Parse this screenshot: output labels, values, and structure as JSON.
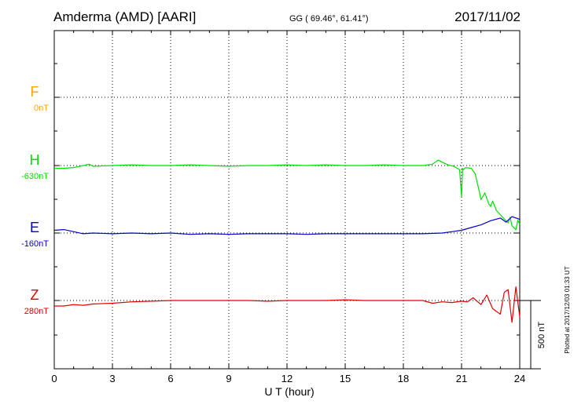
{
  "header": {
    "station": "Amderma (AMD)  [AARI]",
    "coords": "GG ( 69.46°,  61.41°)",
    "date": "2017/11/02"
  },
  "footer": {
    "plotted": "Plotted at 2017/12/03 01:33 UT"
  },
  "chart_data": {
    "type": "line",
    "xlabel": "U T (hour)",
    "xlim": [
      0,
      24
    ],
    "xticks": [
      "0",
      "3",
      "6",
      "9",
      "12",
      "15",
      "18",
      "21",
      "24"
    ],
    "scale_bar": "500 nT",
    "grid": true,
    "colors": {
      "F": "#ffa500",
      "H": "#00e000",
      "E": "#0000cc",
      "Z": "#e00000"
    },
    "series": [
      {
        "name": "F",
        "baseline_label": "0nT",
        "values_x": [],
        "values_y": []
      },
      {
        "name": "H",
        "baseline_label": "-630nT",
        "values_x": [
          0,
          0.5,
          1,
          1.5,
          1.8,
          2,
          3,
          4,
          5,
          6,
          7,
          8,
          9,
          10,
          11,
          12,
          13,
          14,
          15,
          16,
          17,
          18,
          19,
          19.5,
          19.8,
          20,
          20.3,
          20.6,
          20.9,
          21.0,
          21.05,
          21.1,
          21.2,
          21.5,
          21.7,
          21.8,
          21.9,
          22.0,
          22.2,
          22.4,
          22.5,
          22.6,
          22.8,
          23.0,
          23.2,
          23.4,
          23.5,
          23.6,
          23.8,
          23.9,
          24
        ],
        "values_y": [
          -20,
          -20,
          -15,
          0,
          10,
          -5,
          0,
          5,
          0,
          0,
          5,
          0,
          -5,
          0,
          0,
          5,
          0,
          5,
          0,
          0,
          5,
          0,
          0,
          10,
          40,
          25,
          5,
          -5,
          -30,
          -230,
          -20,
          -30,
          -15,
          -20,
          -60,
          -120,
          -180,
          -250,
          -200,
          -280,
          -300,
          -260,
          -330,
          -360,
          -390,
          -420,
          -380,
          -440,
          -470,
          -400,
          -430
        ]
      },
      {
        "name": "E",
        "baseline_label": "-160nT",
        "values_x": [
          0,
          0.5,
          1,
          1.5,
          2,
          3,
          4,
          5,
          6,
          7,
          8,
          9,
          10,
          11,
          12,
          13,
          14,
          15,
          16,
          17,
          18,
          19,
          20,
          20.5,
          21,
          21.5,
          22,
          22.5,
          23,
          23.3,
          23.6,
          24
        ],
        "values_y": [
          20,
          25,
          10,
          -5,
          0,
          -5,
          0,
          -5,
          0,
          -10,
          -5,
          -10,
          -5,
          -5,
          -5,
          -10,
          -5,
          -5,
          -5,
          -5,
          -5,
          -5,
          0,
          10,
          20,
          40,
          60,
          90,
          110,
          80,
          120,
          100
        ]
      },
      {
        "name": "Z",
        "baseline_label": "280nT",
        "values_x": [
          0,
          0.5,
          1,
          1.5,
          2,
          3,
          4,
          5,
          6,
          7,
          8,
          9,
          10,
          11,
          12,
          13,
          14,
          15,
          16,
          17,
          18,
          19,
          19.5,
          20,
          20.5,
          21,
          21.3,
          21.6,
          22,
          22.3,
          22.6,
          23,
          23.2,
          23.4,
          23.6,
          23.8,
          24
        ],
        "values_y": [
          -40,
          -40,
          -30,
          -35,
          -25,
          -20,
          -10,
          -5,
          0,
          0,
          0,
          0,
          0,
          -5,
          0,
          0,
          0,
          5,
          0,
          0,
          0,
          0,
          -20,
          -10,
          -15,
          -5,
          -10,
          20,
          -30,
          40,
          -60,
          -100,
          60,
          80,
          -160,
          100,
          -120
        ]
      }
    ]
  }
}
